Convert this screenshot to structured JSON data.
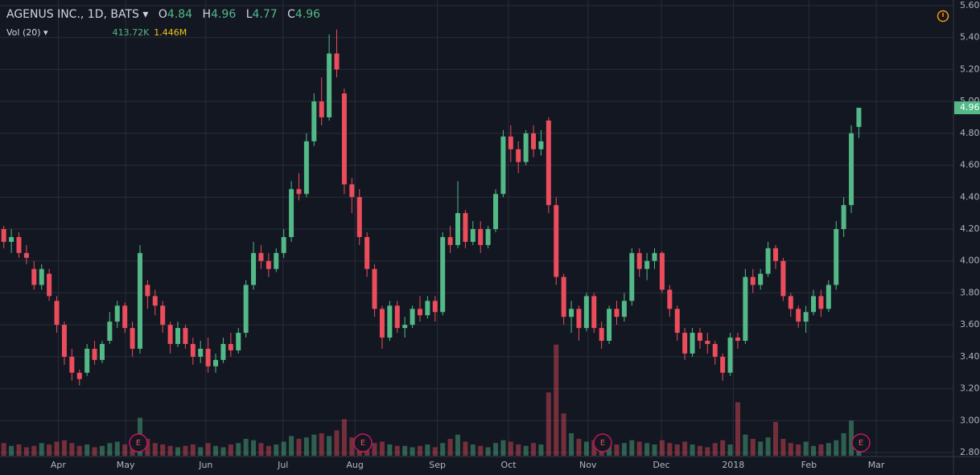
{
  "header": {
    "symbol": "AGENUS INC., 1D, BATS",
    "o_label": "O",
    "o": "4.84",
    "h_label": "H",
    "h": "4.96",
    "l_label": "L",
    "l": "4.77",
    "c_label": "C",
    "c": "4.96",
    "vol_label": "Vol (20)",
    "vol": "413.72K",
    "vol_ma": "1.446M",
    "earnings": [
      "E",
      "E",
      "E",
      "E"
    ]
  },
  "chart_data": {
    "type": "candlestick",
    "up_color": "#53b987",
    "down_color": "#eb4d5c",
    "grid": true,
    "open": [
      4.2,
      4.12,
      4.15,
      4.05,
      3.95,
      3.85,
      3.92,
      3.75,
      3.6,
      3.4,
      3.3,
      3.3,
      3.45,
      3.38,
      3.5,
      3.62,
      3.72,
      3.58,
      3.45,
      3.85,
      3.78,
      3.72,
      3.6,
      3.48,
      3.58,
      3.48,
      3.4,
      3.45,
      3.34,
      3.38,
      3.48,
      3.44,
      3.55,
      3.85,
      4.05,
      4.0,
      3.95,
      4.05,
      4.15,
      4.45,
      4.42,
      4.75,
      5.0,
      4.9,
      5.3,
      5.05,
      4.48,
      4.4,
      4.15,
      3.95,
      3.7,
      3.52,
      3.72,
      3.58,
      3.6,
      3.7,
      3.66,
      3.75,
      3.68,
      4.15,
      4.1,
      4.3,
      4.12,
      4.2,
      4.1,
      4.2,
      4.42,
      4.78,
      4.7,
      4.62,
      4.8,
      4.7,
      4.88,
      4.35,
      3.9,
      3.65,
      3.7,
      3.58,
      3.78,
      3.58,
      3.5,
      3.7,
      3.65,
      3.75,
      4.05,
      3.95,
      4.0,
      4.05,
      3.82,
      3.7,
      3.55,
      3.42,
      3.55,
      3.5,
      3.48,
      3.4,
      3.3,
      3.52,
      3.5,
      3.9,
      3.85,
      3.92,
      4.08,
      4.0,
      3.78,
      3.7,
      3.62,
      3.68,
      3.78,
      3.7,
      3.85,
      4.2,
      4.35,
      4.84
    ],
    "high": [
      4.22,
      4.2,
      4.18,
      4.1,
      4.0,
      3.98,
      3.95,
      3.78,
      3.62,
      3.45,
      3.32,
      3.48,
      3.5,
      3.5,
      3.68,
      3.75,
      3.74,
      3.62,
      4.1,
      3.88,
      3.82,
      3.75,
      3.62,
      3.62,
      3.6,
      3.52,
      3.5,
      3.52,
      3.42,
      3.52,
      3.55,
      3.58,
      3.88,
      4.12,
      4.1,
      4.05,
      4.08,
      4.2,
      4.5,
      4.55,
      4.8,
      5.05,
      5.15,
      5.42,
      5.45,
      5.08,
      4.52,
      4.45,
      4.18,
      3.98,
      3.72,
      3.75,
      3.75,
      3.65,
      3.72,
      3.78,
      3.78,
      3.78,
      4.18,
      4.22,
      4.5,
      4.32,
      4.25,
      4.25,
      4.22,
      4.45,
      4.82,
      4.85,
      4.75,
      4.82,
      4.85,
      4.82,
      4.9,
      4.4,
      3.92,
      3.75,
      3.72,
      3.8,
      3.8,
      3.62,
      3.72,
      3.75,
      3.8,
      4.08,
      4.08,
      4.05,
      4.08,
      4.06,
      3.85,
      3.72,
      3.58,
      3.58,
      3.58,
      3.55,
      3.5,
      3.42,
      3.55,
      3.55,
      3.95,
      3.95,
      3.95,
      4.12,
      4.1,
      4.02,
      3.8,
      3.72,
      3.72,
      3.82,
      3.82,
      3.88,
      4.25,
      4.4,
      4.85,
      4.96
    ],
    "low": [
      4.08,
      4.05,
      4.02,
      3.98,
      3.82,
      3.82,
      3.75,
      3.55,
      3.35,
      3.25,
      3.22,
      3.28,
      3.35,
      3.36,
      3.48,
      3.58,
      3.55,
      3.4,
      3.42,
      3.7,
      3.66,
      3.55,
      3.42,
      3.46,
      3.45,
      3.35,
      3.36,
      3.3,
      3.3,
      3.36,
      3.4,
      3.42,
      3.52,
      3.82,
      3.95,
      3.9,
      3.93,
      4.02,
      4.12,
      4.38,
      4.4,
      4.72,
      4.85,
      4.88,
      5.15,
      4.42,
      4.3,
      4.1,
      3.9,
      3.65,
      3.45,
      3.5,
      3.55,
      3.52,
      3.58,
      3.62,
      3.64,
      3.62,
      3.66,
      4.05,
      4.08,
      4.08,
      4.1,
      4.05,
      4.08,
      4.18,
      4.4,
      4.62,
      4.55,
      4.6,
      4.65,
      4.66,
      4.3,
      3.85,
      3.6,
      3.55,
      3.5,
      3.56,
      3.55,
      3.45,
      3.48,
      3.6,
      3.62,
      3.72,
      3.9,
      3.88,
      3.95,
      3.8,
      3.65,
      3.5,
      3.38,
      3.4,
      3.45,
      3.42,
      3.35,
      3.25,
      3.28,
      3.45,
      3.48,
      3.8,
      3.82,
      3.9,
      3.95,
      3.75,
      3.65,
      3.58,
      3.55,
      3.66,
      3.65,
      3.68,
      3.82,
      4.15,
      4.3,
      4.77
    ],
    "close": [
      4.12,
      4.15,
      4.05,
      4.02,
      3.85,
      3.95,
      3.78,
      3.6,
      3.4,
      3.3,
      3.26,
      3.45,
      3.38,
      3.48,
      3.62,
      3.72,
      3.58,
      3.45,
      4.05,
      3.78,
      3.72,
      3.6,
      3.48,
      3.58,
      3.48,
      3.4,
      3.45,
      3.34,
      3.38,
      3.48,
      3.44,
      3.55,
      3.85,
      4.05,
      4.0,
      3.95,
      4.05,
      4.15,
      4.45,
      4.42,
      4.75,
      5.0,
      4.9,
      5.3,
      5.2,
      4.48,
      4.4,
      4.15,
      3.95,
      3.7,
      3.52,
      3.72,
      3.58,
      3.6,
      3.7,
      3.66,
      3.75,
      3.68,
      4.15,
      4.1,
      4.3,
      4.12,
      4.2,
      4.1,
      4.2,
      4.42,
      4.78,
      4.7,
      4.62,
      4.8,
      4.7,
      4.75,
      4.35,
      3.9,
      3.65,
      3.7,
      3.58,
      3.78,
      3.58,
      3.5,
      3.7,
      3.65,
      3.75,
      4.05,
      3.95,
      4.0,
      4.05,
      3.82,
      3.7,
      3.55,
      3.42,
      3.55,
      3.5,
      3.48,
      3.4,
      3.3,
      3.52,
      3.5,
      3.9,
      3.85,
      3.92,
      4.08,
      4.0,
      3.78,
      3.7,
      3.62,
      3.68,
      3.78,
      3.7,
      3.85,
      4.2,
      4.35,
      4.8,
      4.96
    ],
    "volume": [
      900,
      700,
      800,
      600,
      700,
      900,
      800,
      1000,
      1100,
      900,
      700,
      800,
      600,
      700,
      900,
      1000,
      800,
      1100,
      2700,
      1200,
      900,
      800,
      700,
      600,
      700,
      800,
      600,
      900,
      700,
      600,
      800,
      900,
      1200,
      1100,
      900,
      700,
      800,
      1000,
      1400,
      1200,
      1300,
      1500,
      1600,
      1400,
      1800,
      2600,
      1300,
      1100,
      1000,
      900,
      1000,
      800,
      700,
      700,
      600,
      700,
      800,
      600,
      900,
      1200,
      1500,
      1000,
      800,
      700,
      600,
      900,
      1100,
      1000,
      800,
      700,
      900,
      800,
      4500,
      7900,
      3000,
      1600,
      1200,
      1000,
      1100,
      900,
      1100,
      800,
      900,
      1100,
      1000,
      900,
      800,
      1100,
      900,
      800,
      1000,
      800,
      700,
      600,
      900,
      1100,
      800,
      3800,
      1500,
      1200,
      1000,
      1300,
      2400,
      1200,
      900,
      800,
      1000,
      700,
      800,
      900,
      1100,
      1600,
      2500,
      413.72
    ],
    "volume_lim": [
      0,
      8000
    ],
    "xlim": [
      -0.5,
      125.5
    ],
    "xticks": [
      {
        "value": 7.2,
        "label": "Apr"
      },
      {
        "value": 16.1,
        "label": "May"
      },
      {
        "value": 26.7,
        "label": "Jun"
      },
      {
        "value": 36.9,
        "label": "Jul"
      },
      {
        "value": 46.4,
        "label": "Aug"
      },
      {
        "value": 57.3,
        "label": "Sep"
      },
      {
        "value": 66.7,
        "label": "Oct"
      },
      {
        "value": 77.2,
        "label": "Nov"
      },
      {
        "value": 86.9,
        "label": "Dec"
      },
      {
        "value": 96.4,
        "label": "2018"
      },
      {
        "value": 106.4,
        "label": "Feb"
      },
      {
        "value": 115.3,
        "label": "Mar"
      }
    ],
    "ylim": [
      2.8,
      5.6
    ],
    "yticks": [
      {
        "value": 2.8,
        "label": "2.80"
      },
      {
        "value": 3.0,
        "label": "3.00"
      },
      {
        "value": 3.2,
        "label": "3.20"
      },
      {
        "value": 3.4,
        "label": "3.40"
      },
      {
        "value": 3.6,
        "label": "3.60"
      },
      {
        "value": 3.8,
        "label": "3.80"
      },
      {
        "value": 4.0,
        "label": "4.00"
      },
      {
        "value": 4.2,
        "label": "4.20"
      },
      {
        "value": 4.4,
        "label": "4.40"
      },
      {
        "value": 4.6,
        "label": "4.60"
      },
      {
        "value": 4.8,
        "label": "4.80"
      },
      {
        "value": 5.0,
        "label": "5.00"
      },
      {
        "value": 5.2,
        "label": "5.20"
      },
      {
        "value": 5.4,
        "label": "5.40"
      },
      {
        "value": 5.6,
        "label": "5.60"
      }
    ]
  }
}
